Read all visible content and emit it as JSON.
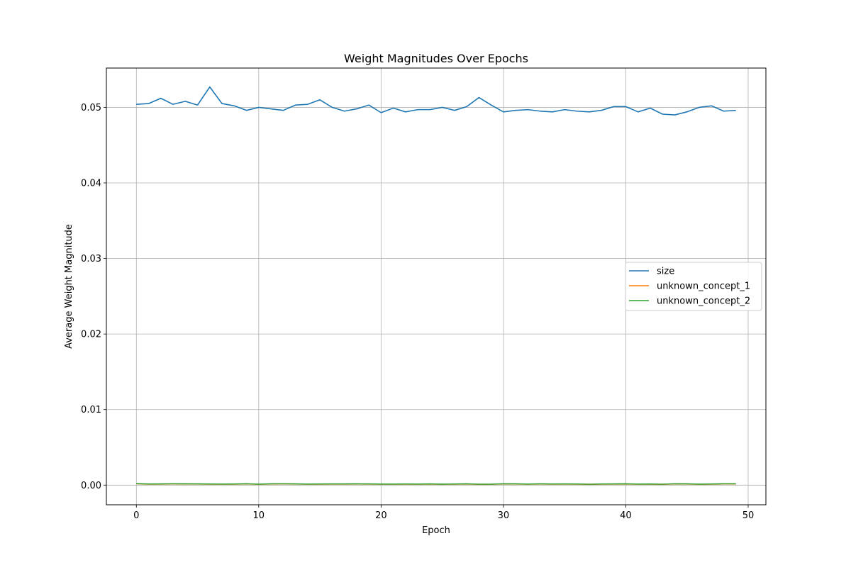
{
  "chart_data": {
    "type": "line",
    "title": "Weight Magnitudes Over Epochs",
    "xlabel": "Epoch",
    "ylabel": "Average Weight Magnitude",
    "xlim": [
      -2.45,
      51.45
    ],
    "ylim": [
      -0.0026,
      0.0552
    ],
    "xticks": [
      0,
      10,
      20,
      30,
      40,
      50
    ],
    "yticks": [
      0.0,
      0.01,
      0.02,
      0.03,
      0.04,
      0.05
    ],
    "xtick_labels": [
      "0",
      "10",
      "20",
      "30",
      "40",
      "50"
    ],
    "ytick_labels": [
      "0.00",
      "0.01",
      "0.02",
      "0.03",
      "0.04",
      "0.05"
    ],
    "grid": true,
    "legend_position": "center-right",
    "x": [
      0,
      1,
      2,
      3,
      4,
      5,
      6,
      7,
      8,
      9,
      10,
      11,
      12,
      13,
      14,
      15,
      16,
      17,
      18,
      19,
      20,
      21,
      22,
      23,
      24,
      25,
      26,
      27,
      28,
      29,
      30,
      31,
      32,
      33,
      34,
      35,
      36,
      37,
      38,
      39,
      40,
      41,
      42,
      43,
      44,
      45,
      46,
      47,
      48,
      49
    ],
    "series": [
      {
        "name": "size",
        "color": "#1f77b4",
        "values": [
          0.0504,
          0.0505,
          0.0512,
          0.0504,
          0.0508,
          0.0503,
          0.0527,
          0.0505,
          0.0502,
          0.0496,
          0.05,
          0.0498,
          0.0496,
          0.0503,
          0.0504,
          0.051,
          0.05,
          0.0495,
          0.0498,
          0.0503,
          0.0493,
          0.0499,
          0.0494,
          0.0497,
          0.0497,
          0.05,
          0.0496,
          0.0501,
          0.0513,
          0.0503,
          0.0494,
          0.0496,
          0.0497,
          0.0495,
          0.0494,
          0.0497,
          0.0495,
          0.0494,
          0.0496,
          0.0501,
          0.0501,
          0.0494,
          0.0499,
          0.0491,
          0.049,
          0.0494,
          0.05,
          0.0502,
          0.0495,
          0.0496
        ]
      },
      {
        "name": "unknown_concept_1",
        "color": "#ff7f0e",
        "values": [
          0.00018,
          0.00012,
          0.00014,
          0.00016,
          0.00015,
          0.00015,
          0.00013,
          0.00012,
          0.00013,
          0.00016,
          0.00011,
          0.00015,
          0.00016,
          0.00015,
          0.00012,
          0.00013,
          0.00014,
          0.00014,
          0.00015,
          0.00014,
          0.00012,
          0.00012,
          0.00013,
          0.00012,
          0.00014,
          0.00011,
          0.00013,
          0.00015,
          0.0001,
          0.00011,
          0.00016,
          0.00015,
          0.00012,
          0.00015,
          0.00013,
          0.00014,
          0.00013,
          0.0001,
          0.00013,
          0.00014,
          0.00015,
          0.00012,
          0.00013,
          0.0001,
          0.00016,
          0.00015,
          0.00011,
          0.00013,
          0.00016,
          0.00016
        ]
      },
      {
        "name": "unknown_concept_2",
        "color": "#2ca02c",
        "values": [
          0.0002,
          0.00015,
          0.00016,
          0.00018,
          0.00017,
          0.00016,
          0.00015,
          0.00014,
          0.00015,
          0.00018,
          0.00013,
          0.00017,
          0.00018,
          0.00016,
          0.00014,
          0.00015,
          0.00016,
          0.00016,
          0.00017,
          0.00016,
          0.00014,
          0.00014,
          0.00015,
          0.00014,
          0.00016,
          0.00013,
          0.00015,
          0.00017,
          0.00012,
          0.00013,
          0.00018,
          0.00017,
          0.00014,
          0.00017,
          0.00015,
          0.00016,
          0.00015,
          0.00012,
          0.00015,
          0.00016,
          0.00017,
          0.00014,
          0.00015,
          0.00012,
          0.00018,
          0.00017,
          0.00013,
          0.00015,
          0.00018,
          0.00018
        ]
      }
    ]
  }
}
